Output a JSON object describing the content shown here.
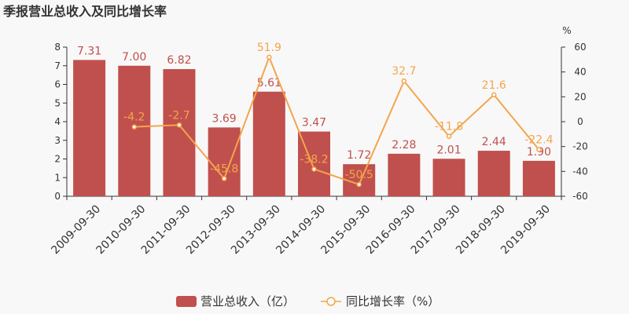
{
  "chart_data": {
    "type": "bar",
    "title": "季报营业总收入及同比增长率",
    "categories": [
      "2009-09-30",
      "2010-09-30",
      "2011-09-30",
      "2012-09-30",
      "2013-09-30",
      "2014-09-30",
      "2015-09-30",
      "2016-09-30",
      "2017-09-30",
      "2018-09-30",
      "2019-09-30"
    ],
    "series": [
      {
        "name": "营业总收入（亿）",
        "type": "bar",
        "axis": "left",
        "color": "#c0504d",
        "values": [
          7.31,
          7.0,
          6.82,
          3.69,
          5.61,
          3.47,
          1.72,
          2.28,
          2.01,
          2.44,
          1.9
        ],
        "labels": [
          "7.31",
          "7.00",
          "6.82",
          "3.69",
          "5.61",
          "3.47",
          "1.72",
          "2.28",
          "2.01",
          "2.44",
          "1.90"
        ]
      },
      {
        "name": "同比增长率（%）",
        "type": "line",
        "axis": "right",
        "color": "#f4a54c",
        "values": [
          null,
          -4.2,
          -2.7,
          -45.8,
          51.9,
          -38.2,
          -50.5,
          32.7,
          -11.8,
          21.6,
          -22.4
        ],
        "labels": [
          "",
          "-4.2",
          "-2.7",
          "-45.8",
          "51.9",
          "-38.2",
          "-50.5",
          "32.7",
          "-11.8",
          "21.6",
          "-22.4"
        ]
      }
    ],
    "y_left": {
      "min": 0,
      "max": 8,
      "ticks": [
        0,
        1,
        2,
        3,
        4,
        5,
        6,
        7,
        8
      ]
    },
    "y_right": {
      "min": -60,
      "max": 60,
      "ticks": [
        -60,
        -40,
        -20,
        0,
        20,
        40,
        60
      ],
      "unit": "%"
    },
    "grid": false,
    "legend": "bottom-center"
  }
}
